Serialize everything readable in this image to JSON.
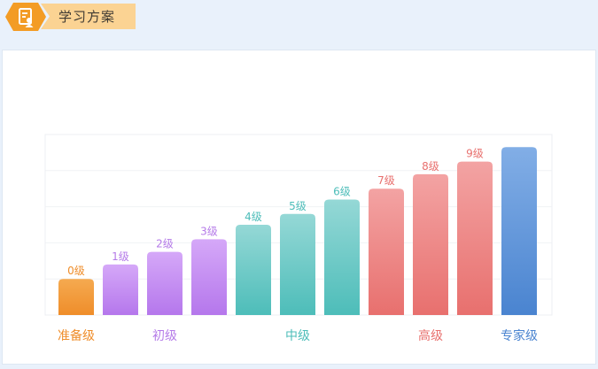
{
  "header": {
    "title": "学习方案",
    "icon": "document-person-icon",
    "accent": "#f39c25",
    "tab_color": "#fbd393"
  },
  "chart_data": {
    "type": "bar",
    "title": "",
    "xlabel": "",
    "ylabel": "",
    "grid": true,
    "categories": [
      "0级",
      "1级",
      "2级",
      "3级",
      "4级",
      "5级",
      "6级",
      "7级",
      "8级",
      "9级",
      "专家级"
    ],
    "values": [
      1,
      1.4,
      1.75,
      2.1,
      2.5,
      2.8,
      3.2,
      3.5,
      3.9,
      4.25,
      4.65
    ],
    "bar_labels": [
      "0级",
      "1级",
      "2级",
      "3级",
      "4级",
      "5级",
      "6级",
      "7级",
      "8级",
      "9级",
      ""
    ],
    "ylim": [
      0,
      5
    ],
    "groups": [
      {
        "name": "准备级",
        "color": "#ef8d2a",
        "members": [
          0
        ]
      },
      {
        "name": "初级",
        "color": "#b57be8",
        "members": [
          1,
          2,
          3
        ]
      },
      {
        "name": "中级",
        "color": "#4dbdb9",
        "members": [
          4,
          5,
          6
        ]
      },
      {
        "name": "高级",
        "color": "#e8706e",
        "members": [
          7,
          8,
          9
        ]
      },
      {
        "name": "专家级",
        "color": "#4a84d0",
        "members": [
          10
        ]
      }
    ],
    "gradients": [
      [
        "#f5aa50",
        "#ef8d2a"
      ],
      [
        "#d5a8f8",
        "#b577ec"
      ],
      [
        "#d5a8f8",
        "#b577ec"
      ],
      [
        "#d5a8f8",
        "#b577ec"
      ],
      [
        "#95d8d6",
        "#4dbdb9"
      ],
      [
        "#95d8d6",
        "#4dbdb9"
      ],
      [
        "#95d8d6",
        "#4dbdb9"
      ],
      [
        "#f3a3a3",
        "#e8706e"
      ],
      [
        "#f3a3a3",
        "#e8706e"
      ],
      [
        "#f3a3a3",
        "#e8706e"
      ],
      [
        "#82aee6",
        "#4a84d0"
      ]
    ],
    "label_colors": [
      "#ef8d2a",
      "#b57be8",
      "#b57be8",
      "#b57be8",
      "#4dbdb9",
      "#4dbdb9",
      "#4dbdb9",
      "#e8706e",
      "#e8706e",
      "#e8706e",
      "#4a84d0"
    ]
  }
}
